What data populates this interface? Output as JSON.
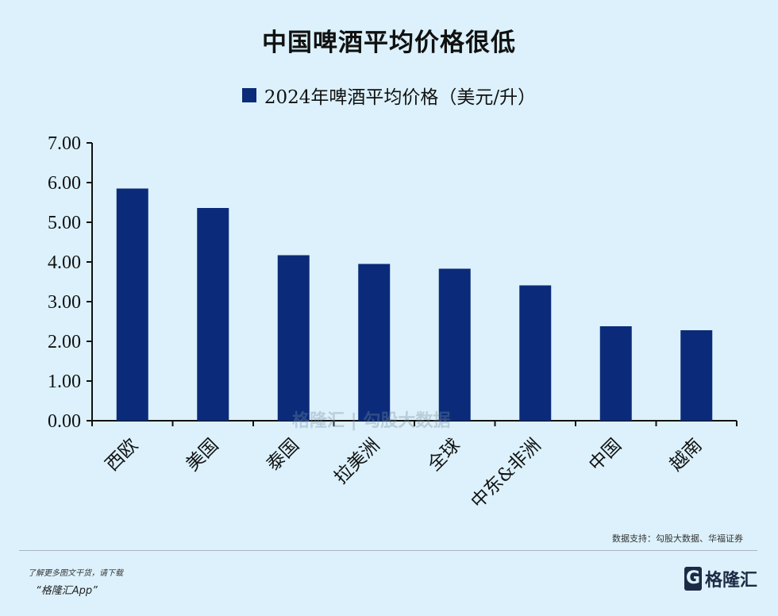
{
  "chart_data": {
    "type": "bar",
    "title": "中国啤酒平均价格很低",
    "categories": [
      "西欧",
      "美国",
      "泰国",
      "拉美洲",
      "全球",
      "中东&非洲",
      "中国",
      "越南"
    ],
    "series": [
      {
        "name": "2024年啤酒平均价格（美元/升）",
        "values": [
          5.85,
          5.36,
          4.17,
          3.95,
          3.83,
          3.41,
          2.38,
          2.28
        ],
        "color": "#0b2b7a"
      }
    ],
    "yticks": [
      "0.00",
      "1.00",
      "2.00",
      "3.00",
      "4.00",
      "5.00",
      "6.00",
      "7.00"
    ],
    "ylim": [
      0,
      7
    ],
    "grid": false,
    "legend": "top-center",
    "xlabel": "",
    "ylabel": ""
  },
  "watermark": "格隆汇 | 勾股大数据",
  "source": "数据支持：勾股大数据、华福证券",
  "footer": {
    "promo_line1": "了解更多图文干货，请下载",
    "promo_line2": "“格隆汇App”",
    "logo_text": "格隆汇",
    "logo_letter": "G"
  }
}
